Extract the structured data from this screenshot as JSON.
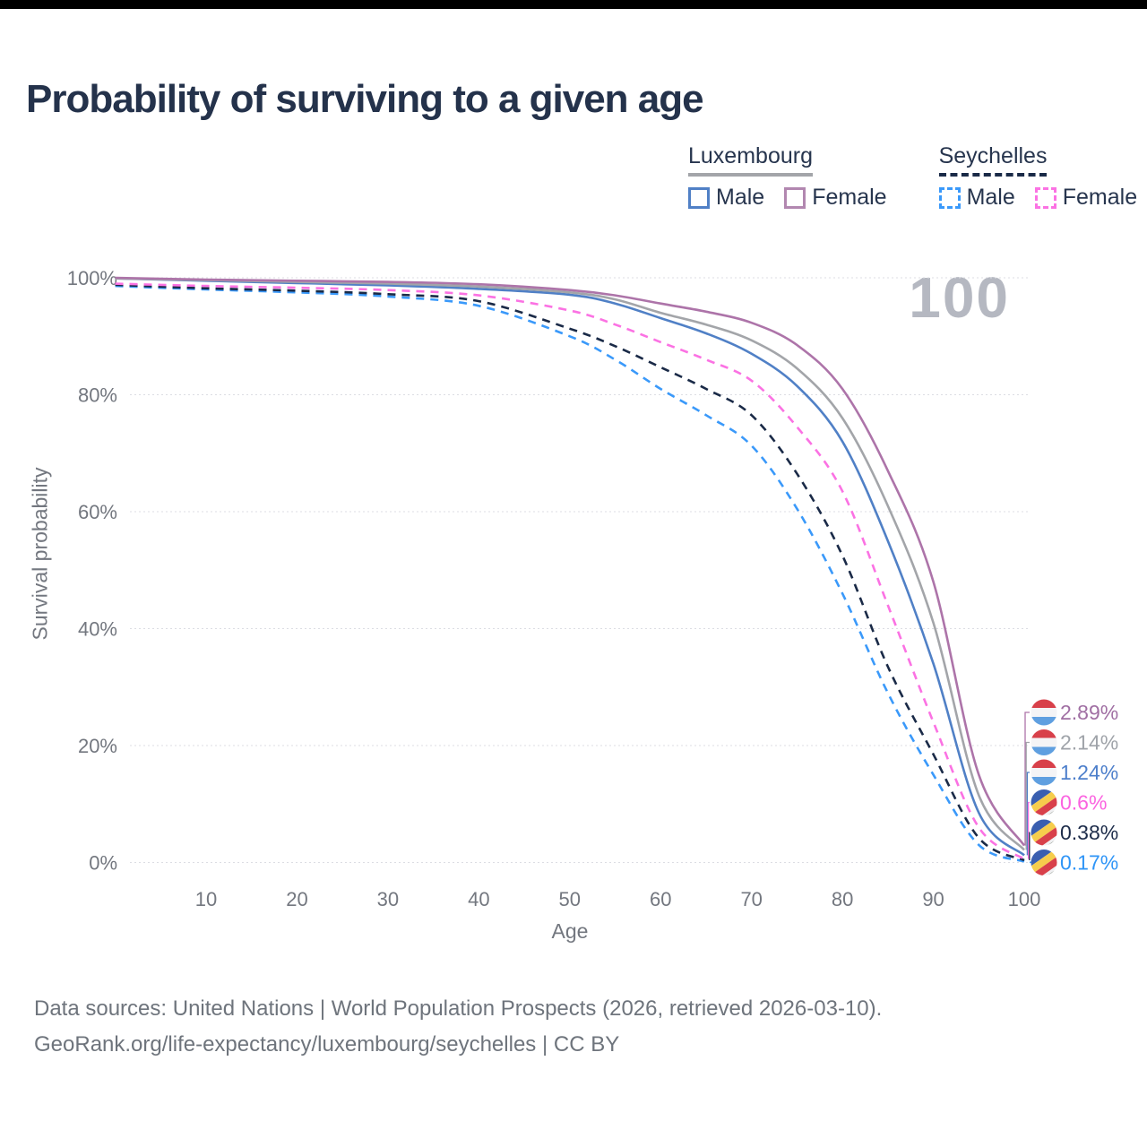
{
  "header": {
    "title": "Probability of surviving to a given age"
  },
  "legend": {
    "groups": [
      {
        "name": "Luxembourg",
        "style": "solid",
        "items": [
          {
            "label": "Male"
          },
          {
            "label": "Female"
          }
        ]
      },
      {
        "name": "Seychelles",
        "style": "dashed",
        "items": [
          {
            "label": "Male"
          },
          {
            "label": "Female"
          }
        ]
      }
    ]
  },
  "colors": {
    "lux_underline": {
      "color": "#a3a5a9",
      "style": "solid"
    },
    "sey_underline": {
      "color": "#1a2a47",
      "style": "dashed"
    },
    "lux_male_swatch": {
      "color": "#5080c6",
      "style": "solid"
    },
    "lux_female_swatch": {
      "color": "#b287b0",
      "style": "solid"
    },
    "sey_male_swatch": {
      "color": "#3a99fa",
      "style": "dashed"
    },
    "sey_female_swatch": {
      "color": "#fb72e3",
      "style": "dashed"
    },
    "title_color": "#24324b",
    "axis_text_color": "#73777f",
    "watermark_color": "#b5b8c1",
    "grid_color": "#dcdde3"
  },
  "footer": {
    "line1": "Data sources: United Nations | World Population Prospects (2026, retrieved 2026-03-10).",
    "line2": "GeoRank.org/life-expectancy/luxembourg/seychelles | CC BY"
  },
  "chart_data": {
    "type": "line",
    "title": "Probability of surviving to a given age",
    "xlabel": "Age",
    "ylabel": "Survival probability",
    "watermark": "100",
    "xlim": [
      0,
      100
    ],
    "ylim": [
      0,
      100
    ],
    "grid": true,
    "legend_position": "top-right",
    "x_ticks": [
      10,
      20,
      30,
      40,
      50,
      60,
      70,
      80,
      90,
      100
    ],
    "y_ticks": [
      {
        "value": 0,
        "label": "0%"
      },
      {
        "value": 20,
        "label": "20%"
      },
      {
        "value": 40,
        "label": "40%"
      },
      {
        "value": 60,
        "label": "60%"
      },
      {
        "value": 80,
        "label": "80%"
      },
      {
        "value": 100,
        "label": "100%"
      }
    ],
    "x": [
      0,
      10,
      20,
      30,
      40,
      50,
      55,
      60,
      65,
      70,
      75,
      80,
      85,
      90,
      95,
      100
    ],
    "series": [
      {
        "name": "Seychelles Male",
        "country": "Seychelles",
        "sex": "Male",
        "style": "dashed",
        "color": "#3a99fa",
        "values": [
          98.6,
          98.0,
          97.5,
          96.8,
          95.2,
          90.0,
          86.0,
          81.0,
          76.5,
          71.3,
          60.5,
          46.0,
          29.0,
          15.0,
          3.0,
          0.17
        ]
      },
      {
        "name": "Seychelles Both sexes",
        "country": "Seychelles",
        "sex": "Both sexes",
        "style": "dashed",
        "color": "#1a2a47",
        "values": [
          98.8,
          98.2,
          97.8,
          97.2,
          96.0,
          91.3,
          88.3,
          84.7,
          81.0,
          76.5,
          66.5,
          52.5,
          33.5,
          18.5,
          4.2,
          0.38
        ]
      },
      {
        "name": "Seychelles Female",
        "country": "Seychelles",
        "sex": "Female",
        "style": "dashed",
        "color": "#fb72e3",
        "values": [
          99.0,
          98.6,
          98.3,
          97.9,
          97.0,
          94.4,
          92.0,
          89.0,
          86.0,
          82.4,
          74.5,
          63.5,
          44.0,
          24.0,
          6.0,
          0.6
        ]
      },
      {
        "name": "Luxembourg Male",
        "country": "Luxembourg",
        "sex": "Male",
        "style": "solid",
        "color": "#5080c6",
        "values": [
          99.9,
          99.5,
          99.1,
          98.7,
          98.1,
          97.1,
          95.6,
          93.1,
          90.5,
          87.0,
          81.5,
          72.0,
          55.0,
          34.0,
          8.5,
          1.24
        ]
      },
      {
        "name": "Luxembourg Both sexes",
        "country": "Luxembourg",
        "sex": "Both sexes",
        "style": "solid",
        "color": "#a3a5a9",
        "values": [
          99.9,
          99.6,
          99.3,
          99.0,
          98.5,
          97.5,
          96.3,
          94.0,
          92.0,
          89.3,
          84.5,
          76.0,
          61.0,
          41.0,
          11.5,
          2.14
        ]
      },
      {
        "name": "Luxembourg Female",
        "country": "Luxembourg",
        "sex": "Female",
        "style": "solid",
        "color": "#ad74a9",
        "values": [
          100,
          99.7,
          99.5,
          99.3,
          98.9,
          97.9,
          97.0,
          95.6,
          94.2,
          92.3,
          88.5,
          81.0,
          67.0,
          48.0,
          15.0,
          2.89
        ]
      }
    ],
    "end_labels": [
      {
        "series": "Luxembourg Female",
        "flag": "luxembourg",
        "text": "2.89%",
        "color": "#a06fa3"
      },
      {
        "series": "Luxembourg Both sexes",
        "flag": "luxembourg",
        "text": "2.14%",
        "color": "#9fa3a9"
      },
      {
        "series": "Luxembourg Male",
        "flag": "luxembourg",
        "text": "1.24%",
        "color": "#4d7fcb"
      },
      {
        "series": "Seychelles Female",
        "flag": "seychelles",
        "text": "0.6%",
        "color": "#fb63e0"
      },
      {
        "series": "Seychelles Both sexes",
        "flag": "seychelles",
        "text": "0.38%",
        "color": "#1d2c4a"
      },
      {
        "series": "Seychelles Male",
        "flag": "seychelles",
        "text": "0.17%",
        "color": "#2f95f7"
      }
    ]
  }
}
